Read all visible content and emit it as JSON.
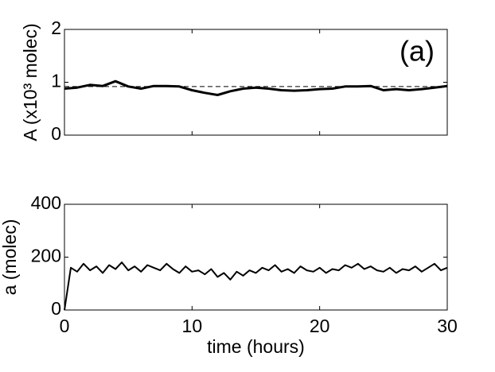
{
  "chart_data": [
    {
      "type": "line",
      "ylabel": "A (x10³ molec)",
      "annotation": "(a)",
      "x": [
        0,
        1,
        2,
        3,
        4,
        5,
        6,
        7,
        8,
        9,
        10,
        11,
        12,
        13,
        14,
        15,
        16,
        17,
        18,
        19,
        20,
        21,
        22,
        23,
        24,
        25,
        26,
        27,
        28,
        29,
        30
      ],
      "series": [
        {
          "color": "#000000",
          "values": [
            0.88,
            0.9,
            0.95,
            0.93,
            1.02,
            0.92,
            0.88,
            0.93,
            0.93,
            0.92,
            0.85,
            0.8,
            0.76,
            0.83,
            0.88,
            0.9,
            0.88,
            0.85,
            0.84,
            0.85,
            0.87,
            0.88,
            0.92,
            0.92,
            0.93,
            0.85,
            0.87,
            0.85,
            0.87,
            0.9,
            0.93
          ]
        }
      ],
      "reference_line": {
        "value": 0.92,
        "style": "dashed"
      },
      "xlim": [
        0,
        30
      ],
      "xticks": [
        0,
        10,
        20,
        30
      ],
      "xtick_labels": false,
      "ylim": [
        0,
        2
      ],
      "yticks": [
        0,
        1,
        2
      ]
    },
    {
      "type": "line",
      "ylabel": "a (molec)",
      "xlabel": "time (hours)",
      "x": [
        0,
        0.5,
        1,
        1.5,
        2,
        2.5,
        3,
        3.5,
        4,
        4.5,
        5,
        5.5,
        6,
        6.5,
        7,
        7.5,
        8,
        8.5,
        9,
        9.5,
        10,
        10.5,
        11,
        11.5,
        12,
        12.5,
        13,
        13.5,
        14,
        14.5,
        15,
        15.5,
        16,
        16.5,
        17,
        17.5,
        18,
        18.5,
        19,
        19.5,
        20,
        20.5,
        21,
        21.5,
        22,
        22.5,
        23,
        23.5,
        24,
        24.5,
        25,
        25.5,
        26,
        26.5,
        27,
        27.5,
        28,
        28.5,
        29,
        29.5,
        30
      ],
      "series": [
        {
          "color": "#000000",
          "values": [
            0,
            160,
            145,
            175,
            150,
            165,
            140,
            170,
            155,
            180,
            150,
            165,
            145,
            170,
            160,
            150,
            175,
            155,
            140,
            165,
            145,
            150,
            135,
            155,
            125,
            140,
            115,
            145,
            130,
            150,
            140,
            160,
            150,
            170,
            145,
            155,
            140,
            165,
            150,
            145,
            160,
            140,
            155,
            150,
            170,
            160,
            175,
            155,
            165,
            150,
            145,
            160,
            140,
            155,
            150,
            165,
            145,
            160,
            175,
            150,
            160
          ]
        }
      ],
      "xlim": [
        0,
        30
      ],
      "xticks": [
        0,
        10,
        20,
        30
      ],
      "xtick_labels": true,
      "ylim": [
        0,
        400
      ],
      "yticks": [
        0,
        200,
        400
      ]
    }
  ]
}
